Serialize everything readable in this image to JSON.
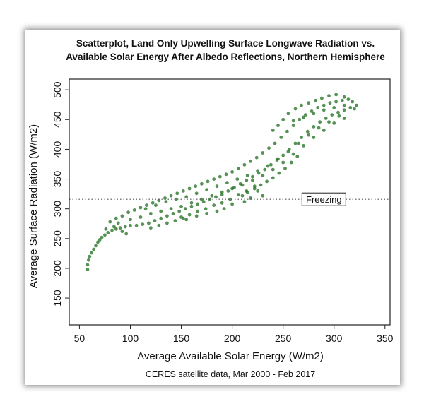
{
  "colors": {
    "point": "#1e6e1e",
    "axis": "#222222",
    "reference_line": "#555555"
  },
  "chart_data": {
    "type": "scatter",
    "title": "Scatterplot, Land Only Upwelling Surface Longwave Radiation vs. Available Solar Energy After Albedo Reflections, Northern Hemisphere",
    "title_lines": [
      "Scatterplot, Land Only Upwelling Surface Longwave Radiation vs.",
      "Available Solar Energy After Albedo Reflections, Northern Hemisphere"
    ],
    "xlabel": "Average Available Solar Energy (W/m2)",
    "ylabel": "Average Surface Radiation (W/m2)",
    "caption": "CERES satellite data, Mar 2000 - Feb 2017",
    "xlim": [
      40,
      355
    ],
    "ylim": [
      105,
      518
    ],
    "xticks": [
      50,
      100,
      150,
      200,
      250,
      300,
      350
    ],
    "yticks": [
      150,
      200,
      250,
      300,
      350,
      400,
      450,
      500
    ],
    "grid": false,
    "legend": "none",
    "reference_line": {
      "y": 316,
      "style": "dotted",
      "label": "Freezing",
      "label_x": 290
    },
    "series": [
      {
        "points": [
          [
            58,
            198
          ],
          [
            58,
            206
          ],
          [
            59,
            214
          ],
          [
            60,
            220
          ],
          [
            62,
            226
          ],
          [
            64,
            232
          ],
          [
            66,
            238
          ],
          [
            68,
            244
          ],
          [
            70,
            248
          ],
          [
            72,
            252
          ],
          [
            75,
            256
          ],
          [
            78,
            260
          ],
          [
            82,
            264
          ],
          [
            86,
            266
          ],
          [
            90,
            268
          ],
          [
            95,
            270
          ],
          [
            100,
            272
          ],
          [
            106,
            272
          ],
          [
            112,
            274
          ],
          [
            118,
            276
          ],
          [
            124,
            280
          ],
          [
            130,
            284
          ],
          [
            136,
            288
          ],
          [
            142,
            292
          ],
          [
            148,
            296
          ],
          [
            154,
            300
          ],
          [
            160,
            304
          ],
          [
            166,
            308
          ],
          [
            172,
            312
          ],
          [
            178,
            316
          ],
          [
            184,
            320
          ],
          [
            190,
            324
          ],
          [
            196,
            330
          ],
          [
            202,
            336
          ],
          [
            208,
            342
          ],
          [
            214,
            348
          ],
          [
            220,
            354
          ],
          [
            226,
            360
          ],
          [
            232,
            366
          ],
          [
            238,
            374
          ],
          [
            244,
            382
          ],
          [
            250,
            390
          ],
          [
            256,
            400
          ],
          [
            262,
            410
          ],
          [
            268,
            420
          ],
          [
            274,
            430
          ],
          [
            280,
            438
          ],
          [
            286,
            446
          ],
          [
            292,
            452
          ],
          [
            298,
            458
          ],
          [
            304,
            462
          ],
          [
            310,
            466
          ],
          [
            316,
            470
          ],
          [
            322,
            474
          ],
          [
            80,
            278
          ],
          [
            86,
            284
          ],
          [
            92,
            288
          ],
          [
            98,
            294
          ],
          [
            104,
            298
          ],
          [
            110,
            302
          ],
          [
            116,
            306
          ],
          [
            122,
            310
          ],
          [
            128,
            314
          ],
          [
            134,
            318
          ],
          [
            140,
            322
          ],
          [
            146,
            326
          ],
          [
            152,
            330
          ],
          [
            158,
            334
          ],
          [
            164,
            338
          ],
          [
            170,
            342
          ],
          [
            176,
            346
          ],
          [
            182,
            350
          ],
          [
            188,
            354
          ],
          [
            194,
            358
          ],
          [
            200,
            362
          ],
          [
            206,
            368
          ],
          [
            212,
            374
          ],
          [
            218,
            380
          ],
          [
            224,
            386
          ],
          [
            230,
            394
          ],
          [
            236,
            402
          ],
          [
            242,
            410
          ],
          [
            248,
            420
          ],
          [
            254,
            430
          ],
          [
            260,
            440
          ],
          [
            266,
            450
          ],
          [
            272,
            458
          ],
          [
            278,
            464
          ],
          [
            284,
            470
          ],
          [
            290,
            474
          ],
          [
            296,
            478
          ],
          [
            302,
            480
          ],
          [
            308,
            482
          ],
          [
            314,
            484
          ],
          [
            100,
            282
          ],
          [
            110,
            286
          ],
          [
            120,
            292
          ],
          [
            130,
            296
          ],
          [
            140,
            300
          ],
          [
            150,
            304
          ],
          [
            160,
            310
          ],
          [
            170,
            316
          ],
          [
            180,
            322
          ],
          [
            190,
            328
          ],
          [
            200,
            334
          ],
          [
            210,
            340
          ],
          [
            220,
            348
          ],
          [
            230,
            356
          ],
          [
            240,
            366
          ],
          [
            250,
            378
          ],
          [
            260,
            392
          ],
          [
            270,
            406
          ],
          [
            280,
            420
          ],
          [
            290,
            432
          ],
          [
            300,
            444
          ],
          [
            310,
            452
          ],
          [
            115,
            300
          ],
          [
            125,
            306
          ],
          [
            135,
            312
          ],
          [
            145,
            316
          ],
          [
            155,
            320
          ],
          [
            165,
            326
          ],
          [
            175,
            332
          ],
          [
            185,
            338
          ],
          [
            195,
            344
          ],
          [
            205,
            350
          ],
          [
            215,
            356
          ],
          [
            225,
            364
          ],
          [
            235,
            372
          ],
          [
            245,
            384
          ],
          [
            255,
            396
          ],
          [
            265,
            410
          ],
          [
            275,
            424
          ],
          [
            285,
            436
          ],
          [
            295,
            446
          ],
          [
            305,
            456
          ],
          [
            210,
            322
          ],
          [
            215,
            328
          ],
          [
            222,
            334
          ],
          [
            228,
            340
          ],
          [
            234,
            346
          ],
          [
            240,
            352
          ],
          [
            246,
            360
          ],
          [
            252,
            368
          ],
          [
            258,
            378
          ],
          [
            264,
            388
          ],
          [
            150,
            286
          ],
          [
            158,
            290
          ],
          [
            166,
            296
          ],
          [
            174,
            300
          ],
          [
            182,
            306
          ],
          [
            190,
            310
          ],
          [
            198,
            316
          ],
          [
            206,
            324
          ],
          [
            214,
            330
          ],
          [
            222,
            338
          ],
          [
            120,
            268
          ],
          [
            128,
            272
          ],
          [
            136,
            276
          ],
          [
            144,
            280
          ],
          [
            152,
            284
          ],
          [
            92,
            262
          ],
          [
            96,
            258
          ],
          [
            84,
            270
          ],
          [
            88,
            276
          ],
          [
            76,
            266
          ],
          [
            255,
            460
          ],
          [
            262,
            468
          ],
          [
            268,
            474
          ],
          [
            275,
            478
          ],
          [
            282,
            482
          ],
          [
            288,
            486
          ],
          [
            295,
            490
          ],
          [
            302,
            492
          ],
          [
            310,
            488
          ],
          [
            318,
            480
          ],
          [
            260,
            448
          ],
          [
            270,
            454
          ],
          [
            280,
            460
          ],
          [
            290,
            466
          ],
          [
            300,
            470
          ],
          [
            310,
            474
          ],
          [
            320,
            468
          ],
          [
            250,
            450
          ],
          [
            245,
            440
          ],
          [
            240,
            432
          ],
          [
            225,
            330
          ],
          [
            230,
            322
          ],
          [
            218,
            318
          ],
          [
            212,
            312
          ],
          [
            200,
            308
          ],
          [
            192,
            300
          ],
          [
            185,
            296
          ],
          [
            175,
            292
          ],
          [
            165,
            288
          ],
          [
            155,
            282
          ]
        ]
      }
    ]
  }
}
